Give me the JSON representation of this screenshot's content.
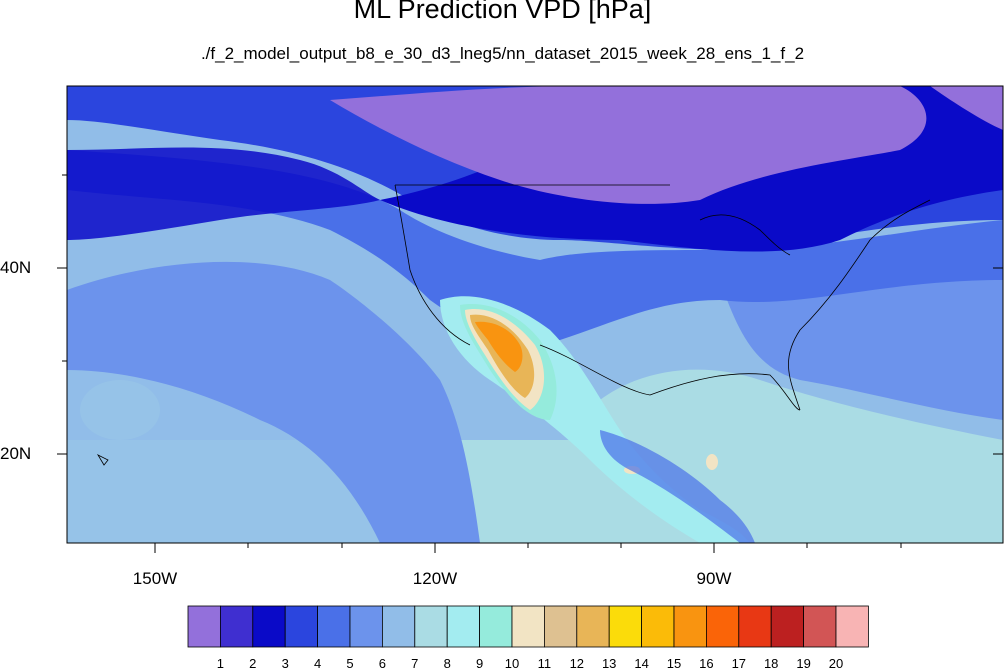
{
  "title": "ML Prediction VPD [hPa]",
  "subtitle": "./f_2_model_output_b8_e_30_d3_lneg5/nn_dataset_2015_week_28_ens_1_f_2",
  "axes": {
    "lon_labels": [
      "150W",
      "120W",
      "90W"
    ],
    "lat_labels": [
      "40N",
      "20N"
    ]
  },
  "colorbar": {
    "labels": [
      "1",
      "2",
      "3",
      "4",
      "5",
      "6",
      "7",
      "8",
      "9",
      "10",
      "11",
      "12",
      "13",
      "14",
      "15",
      "16",
      "17",
      "18",
      "19",
      "20"
    ],
    "colors": [
      "#9370db",
      "#3f2fd0",
      "#0a0ac8",
      "#2b45de",
      "#4a70e8",
      "#6c93ec",
      "#91bde8",
      "#aadce4",
      "#a3ecf0",
      "#95ebdc",
      "#f2e4c4",
      "#dec191",
      "#e8b557",
      "#fbdc0a",
      "#fbbb08",
      "#f99410",
      "#fa6408",
      "#e83814",
      "#bc2020",
      "#d25555",
      "#f8b4b4"
    ]
  },
  "map": {
    "background_color": "#91bde8",
    "colors": {
      "deep": "#0a0ac8",
      "purple": "#9370db",
      "dark_blue": "#2b45de",
      "mid_blue": "#4a70e8",
      "light_blue": "#6c93ec",
      "pale_blue": "#91bde8",
      "cyan_pale": "#aadce4",
      "cyan": "#a3ecf0",
      "teal": "#95ebdc",
      "tan": "#f2e4c4",
      "gold": "#e8b557",
      "orange": "#f99410"
    }
  }
}
